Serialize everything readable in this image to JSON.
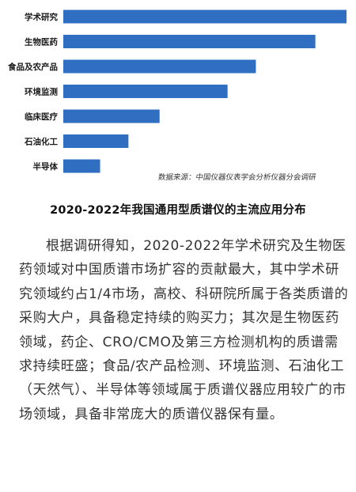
{
  "chart_data": {
    "type": "bar",
    "orientation": "horizontal",
    "categories": [
      "学术研究",
      "生物医药",
      "食品及农产品",
      "环境监测",
      "临床医疗",
      "石油化工",
      "半导体"
    ],
    "values": [
      100,
      89,
      68,
      58,
      34,
      23,
      13
    ],
    "xlim": [
      0,
      100
    ],
    "grid": false,
    "bar_color": "#2f6ec1"
  },
  "source": "数据来源：中国仪器仪表学会分析仪器分会调研",
  "title": "2020-2022年我国通用型质谱仪的主流应用分布",
  "paragraph": "根据调研得知，2020-2022年学术研究及生物医药领域对中国质谱市场扩容的贡献最大，其中学术研究领域约占1/4市场，高校、科研院所属于各类质谱的采购大户，具备稳定持续的购买力；其次是生物医药领域，药企、CRO/CMO及第三方检测机构的质谱需求持续旺盛；食品/农产品检测、环境监测、石油化工（天然气）、半导体等领域属于质谱仪器应用较广的市场领域，具备非常庞大的质谱仪器保有量。"
}
